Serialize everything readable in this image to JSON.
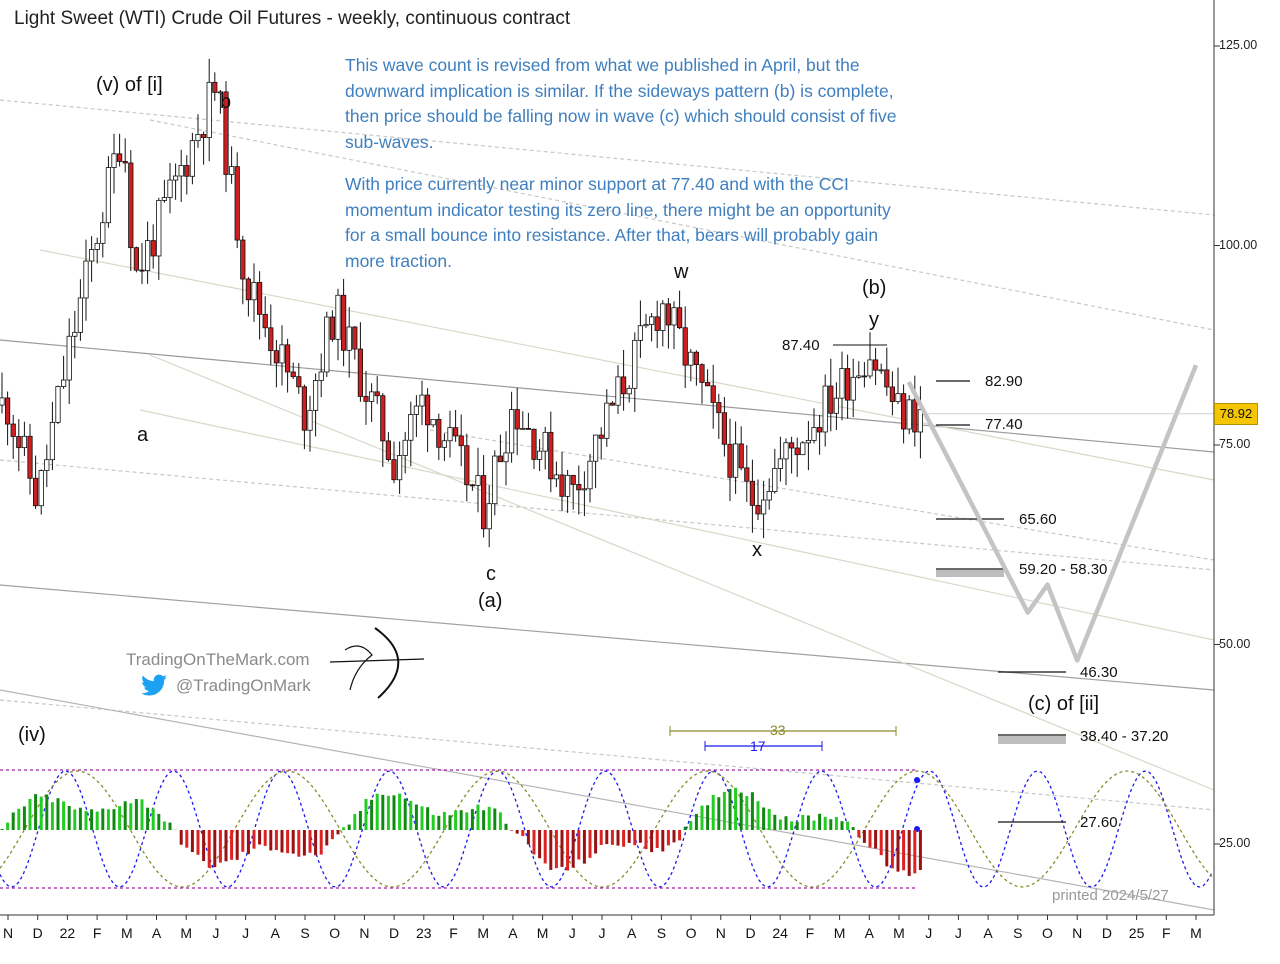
{
  "title": "Light Sweet (WTI) Crude Oil Futures - weekly, continuous contract",
  "notes": [
    "This wave count is revised from what we published in April, but the downward implication is similar. If the sideways pattern (b) is complete, then price should be falling now in wave (c) which should consist of five sub-waves.",
    "With price currently near minor support at 77.40 and with the CCI momentum indicator testing its zero line, there might be an opportunity for a small bounce into resistance. After that, bears will probably gain more traction."
  ],
  "wave_labels": {
    "v_of_i": "(v) of [i]",
    "b": "b",
    "a": "a",
    "c": "c",
    "wave_a": "(a)",
    "w": "w",
    "x": "x",
    "y": "y",
    "wave_b": "(b)",
    "c_of_ii": "(c) of [ii]",
    "iv": "(iv)"
  },
  "levels": {
    "high_8740": "87.40",
    "l8290": "82.90",
    "l7740": "77.40",
    "l6560": "65.60",
    "l5920": "59.20 - 58.30",
    "l4630": "46.30",
    "l3840": "38.40 - 37.20",
    "l2760": "27.60"
  },
  "last_price": "78.92",
  "branding": {
    "site": "TradingOnTheMark.com",
    "handle": "@TradingOnMark",
    "printed": "printed 2024/5/27"
  },
  "cycles": {
    "c33": "33",
    "c17": "17"
  },
  "colors": {
    "up_candle": "#ffffff",
    "down_candle": "#cc1f1f",
    "note_text": "#3f7fbf",
    "cci_up": "#22cc22",
    "cci_down": "#dd2222",
    "cycle_blue": "#1a1aee",
    "cycle_olive": "#8a8a2a",
    "last_price_bg": "#f5c500",
    "projection": "#c4c4c4"
  },
  "chart_data": {
    "type": "candlestick",
    "title": "Light Sweet (WTI) Crude Oil Futures - weekly, continuous contract",
    "ylim": [
      15,
      130
    ],
    "y_ticks": [
      "125.00",
      "100.00",
      "75.00",
      "50.00",
      "25.00"
    ],
    "x_ticks": [
      "N",
      "D",
      "22",
      "F",
      "M",
      "A",
      "M",
      "J",
      "J",
      "A",
      "S",
      "O",
      "N",
      "D",
      "23",
      "F",
      "M",
      "A",
      "M",
      "J",
      "J",
      "A",
      "S",
      "O",
      "N",
      "D",
      "24",
      "F",
      "M",
      "A",
      "M",
      "J",
      "J",
      "A",
      "S",
      "O",
      "N",
      "D",
      "25",
      "F",
      "M"
    ],
    "waypoints": [
      {
        "date": "2021-11",
        "price": 80
      },
      {
        "date": "2021-12",
        "price": 68
      },
      {
        "date": "2022-01",
        "price": 86
      },
      {
        "date": "2022-03",
        "price": 115
      },
      {
        "date": "2022-03",
        "price": 96
      },
      {
        "date": "2022-04",
        "price": 102
      },
      {
        "date": "2022-06",
        "price": 120
      },
      {
        "date": "2022-07",
        "price": 96
      },
      {
        "date": "2022-09",
        "price": 79
      },
      {
        "date": "2022-10",
        "price": 92
      },
      {
        "date": "2022-12",
        "price": 73
      },
      {
        "date": "2023-01",
        "price": 81
      },
      {
        "date": "2023-03",
        "price": 67
      },
      {
        "date": "2023-04",
        "price": 80
      },
      {
        "date": "2023-06",
        "price": 69
      },
      {
        "date": "2023-09",
        "price": 93
      },
      {
        "date": "2023-12",
        "price": 68
      },
      {
        "date": "2024-04",
        "price": 87
      },
      {
        "date": "2024-05",
        "price": 78.92
      }
    ],
    "indicator": "CCI momentum",
    "annotations": [
      "87.40",
      "82.90",
      "77.40",
      "65.60",
      "59.20 - 58.30",
      "46.30",
      "38.40 - 37.20",
      "27.60"
    ],
    "projection_path": [
      {
        "date": "2024-06",
        "price": 82.9
      },
      {
        "date": "2024-09",
        "price": 54
      },
      {
        "date": "2024-10",
        "price": 57.5
      },
      {
        "date": "2024-11",
        "price": 48
      },
      {
        "date": "2025-03",
        "price": 85
      }
    ],
    "last_price": 78.92
  }
}
